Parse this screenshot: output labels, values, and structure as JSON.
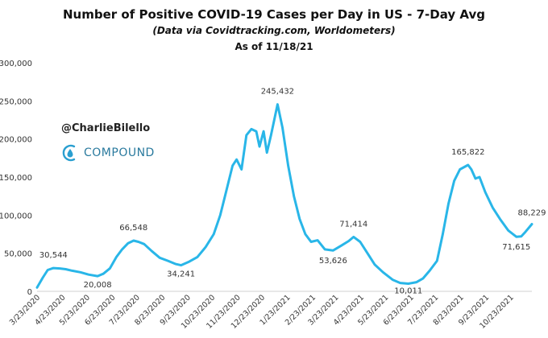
{
  "chart_data": {
    "type": "line",
    "title": "Number of Positive COVID-19 Cases per Day in US - 7-Day Avg",
    "subtitle": "(Data via Covidtracking.com, Worldometers)",
    "as_of": "As of 11/18/21",
    "watermark": "@CharlieBilello",
    "brand": "COMPOUND",
    "series_color": "#29b6e8",
    "ylim": [
      0,
      300000
    ],
    "yticks": [
      0,
      50000,
      100000,
      150000,
      200000,
      250000,
      300000
    ],
    "ytick_labels": [
      "0",
      "50,000",
      "100,000",
      "150,000",
      "200,000",
      "250,000",
      "300,000"
    ],
    "xlim": [
      "2020-03-23",
      "2021-11-18"
    ],
    "xticks": [
      "2020-03-23",
      "2020-04-23",
      "2020-05-23",
      "2020-06-23",
      "2020-07-23",
      "2020-08-23",
      "2020-09-23",
      "2020-10-23",
      "2020-11-23",
      "2020-12-23",
      "2021-01-23",
      "2021-02-23",
      "2021-03-23",
      "2021-04-23",
      "2021-05-23",
      "2021-06-23",
      "2021-07-23",
      "2021-08-23",
      "2021-09-23",
      "2021-10-23"
    ],
    "xtick_labels": [
      "3/23/2020",
      "4/23/2020",
      "5/23/2020",
      "6/23/2020",
      "7/23/2020",
      "8/23/2020",
      "9/23/2020",
      "10/23/2020",
      "11/23/2020",
      "12/23/2020",
      "1/23/2021",
      "2/23/2021",
      "3/23/2021",
      "4/23/2021",
      "5/23/2021",
      "6/23/2021",
      "7/23/2021",
      "8/23/2021",
      "9/23/2021",
      "10/23/2021"
    ],
    "grid": false,
    "series": [
      {
        "x": [
          "2020-03-23",
          "2020-03-30",
          "2020-04-05",
          "2020-04-12",
          "2020-04-20",
          "2020-04-27",
          "2020-05-05",
          "2020-05-15",
          "2020-05-25",
          "2020-06-05",
          "2020-06-12",
          "2020-06-20",
          "2020-06-28",
          "2020-07-05",
          "2020-07-12",
          "2020-07-19",
          "2020-07-25",
          "2020-08-01",
          "2020-08-10",
          "2020-08-20",
          "2020-08-30",
          "2020-09-08",
          "2020-09-15",
          "2020-09-25",
          "2020-10-05",
          "2020-10-15",
          "2020-10-25",
          "2020-11-02",
          "2020-11-09",
          "2020-11-17",
          "2020-11-22",
          "2020-11-28",
          "2020-12-04",
          "2020-12-10",
          "2020-12-16",
          "2020-12-20",
          "2020-12-25",
          "2020-12-29",
          "2021-01-03",
          "2021-01-08",
          "2021-01-11",
          "2021-01-17",
          "2021-01-24",
          "2021-01-31",
          "2021-02-07",
          "2021-02-14",
          "2021-02-21",
          "2021-03-01",
          "2021-03-10",
          "2021-03-20",
          "2021-03-30",
          "2021-04-08",
          "2021-04-14",
          "2021-04-22",
          "2021-05-01",
          "2021-05-10",
          "2021-05-20",
          "2021-06-01",
          "2021-06-10",
          "2021-06-20",
          "2021-06-30",
          "2021-07-08",
          "2021-07-16",
          "2021-07-25",
          "2021-08-01",
          "2021-08-08",
          "2021-08-15",
          "2021-08-22",
          "2021-09-01",
          "2021-09-05",
          "2021-09-10",
          "2021-09-15",
          "2021-09-22",
          "2021-10-01",
          "2021-10-10",
          "2021-10-20",
          "2021-10-30",
          "2021-11-05",
          "2021-11-10",
          "2021-11-18"
        ],
        "y": [
          5000,
          18000,
          28000,
          30544,
          30000,
          29000,
          27000,
          25000,
          22000,
          20008,
          23000,
          30000,
          45000,
          55000,
          63000,
          66548,
          65000,
          62000,
          53000,
          44000,
          40000,
          36000,
          34241,
          39000,
          45000,
          58000,
          75000,
          100000,
          130000,
          165000,
          173000,
          160000,
          205000,
          213000,
          210000,
          190000,
          210000,
          182000,
          205000,
          230000,
          245432,
          215000,
          165000,
          125000,
          95000,
          75000,
          65000,
          67000,
          55000,
          53626,
          60000,
          66000,
          71414,
          65000,
          50000,
          35000,
          25000,
          15000,
          11000,
          10011,
          12000,
          17000,
          27000,
          40000,
          75000,
          115000,
          145000,
          160000,
          165822,
          160000,
          148000,
          150000,
          130000,
          110000,
          95000,
          80000,
          71615,
          72000,
          78000,
          88229
        ]
      }
    ],
    "annotations": [
      {
        "label": "30,544",
        "x": "2020-04-12",
        "y": 30544
      },
      {
        "label": "20,008",
        "x": "2020-06-05",
        "y": 20008
      },
      {
        "label": "66,548",
        "x": "2020-07-19",
        "y": 66548
      },
      {
        "label": "34,241",
        "x": "2020-09-15",
        "y": 34241
      },
      {
        "label": "245,432",
        "x": "2021-01-11",
        "y": 245432
      },
      {
        "label": "53,626",
        "x": "2021-03-20",
        "y": 53626
      },
      {
        "label": "71,414",
        "x": "2021-04-14",
        "y": 71414
      },
      {
        "label": "10,011",
        "x": "2021-06-20",
        "y": 10011
      },
      {
        "label": "165,822",
        "x": "2021-09-01",
        "y": 165822
      },
      {
        "label": "71,615",
        "x": "2021-10-30",
        "y": 71615
      },
      {
        "label": "88,229",
        "x": "2021-11-18",
        "y": 88229
      }
    ]
  }
}
